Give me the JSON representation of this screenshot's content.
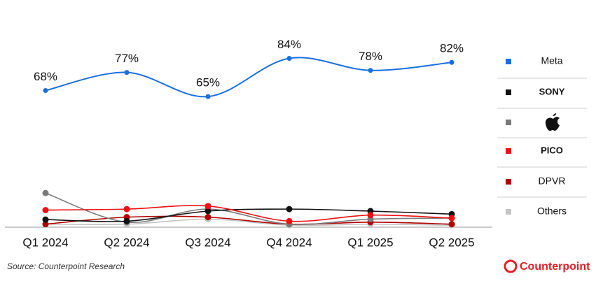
{
  "chart_data": {
    "type": "line",
    "categories": [
      "Q1 2024",
      "Q2 2024",
      "Q3 2024",
      "Q4 2024",
      "Q1 2025",
      "Q2 2025"
    ],
    "ylim": [
      0,
      100
    ],
    "series": [
      {
        "name": "Meta",
        "color": "#1a6fdf",
        "values": [
          68,
          77,
          65,
          84,
          78,
          82
        ],
        "value_labels": [
          "68%",
          "77%",
          "65%",
          "84%",
          "78%",
          "82%"
        ]
      },
      {
        "name": "SONY",
        "color": "#111111",
        "values": [
          3.8,
          3,
          8,
          9,
          8,
          6.5
        ]
      },
      {
        "color": "#7a7a7a",
        "values": [
          17,
          2.5,
          9,
          1.5,
          4,
          4.5
        ]
      },
      {
        "name": "PICO",
        "color": "#ee1111",
        "values": [
          8.5,
          9,
          10.5,
          3,
          6,
          4.5
        ]
      },
      {
        "name": "DPVR",
        "color": "#b00000",
        "values": [
          1.5,
          5,
          5,
          1.5,
          2.5,
          1.5
        ]
      },
      {
        "name": "Others",
        "color": "#c4c4c4",
        "values": [
          1.5,
          1.5,
          4,
          1,
          1.5,
          1
        ]
      }
    ],
    "source": "Source: Counterpoint Research",
    "brand": "Counterpoint"
  }
}
